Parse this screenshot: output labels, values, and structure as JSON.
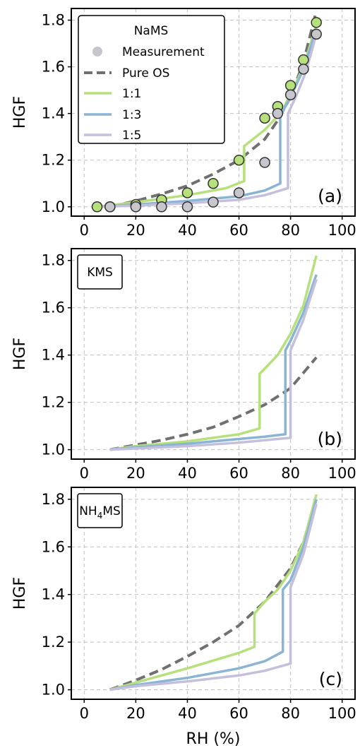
{
  "colors": {
    "ratio_1_1": "#b5e07b",
    "ratio_1_3": "#8ab4d4",
    "ratio_1_5": "#c4bfdc",
    "pure_os": "#707070",
    "measurement_gray": "#c6c6cc",
    "frame": "#000000",
    "grid": "#c0c0c0"
  },
  "chart_data": [
    {
      "type": "line",
      "panel_label": "(a)",
      "species_label": "NaMS",
      "xlabel": "",
      "ylabel": "HGF",
      "xlim": [
        -5,
        105
      ],
      "ylim": [
        0.96,
        1.85
      ],
      "xticks": [
        0,
        20,
        40,
        60,
        80,
        100
      ],
      "yticks": [
        1.0,
        1.2,
        1.4,
        1.6,
        1.8
      ],
      "grid": true,
      "legend": {
        "title": "NaMS",
        "position": "top-left",
        "entries": [
          "Measurement",
          "Pure OS",
          "1:1",
          "1:3",
          "1:5"
        ]
      },
      "series": [
        {
          "name": "Pure OS",
          "style": "dashed",
          "color_key": "pure_os",
          "x": [
            10,
            20,
            30,
            40,
            50,
            60,
            70,
            75,
            80,
            85,
            90
          ],
          "y": [
            1.0,
            1.025,
            1.055,
            1.09,
            1.14,
            1.2,
            1.29,
            1.37,
            1.47,
            1.62,
            1.84
          ]
        },
        {
          "name": "1:1",
          "style": "solid",
          "color_key": "ratio_1_1",
          "x": [
            5,
            20,
            40,
            55,
            62,
            62,
            70,
            76,
            80,
            85,
            90
          ],
          "y": [
            1.0,
            1.02,
            1.05,
            1.08,
            1.11,
            1.26,
            1.33,
            1.4,
            1.48,
            1.6,
            1.78
          ]
        },
        {
          "name": "1:3",
          "style": "solid",
          "color_key": "ratio_1_3",
          "x": [
            5,
            20,
            40,
            60,
            70,
            76,
            76,
            80,
            85,
            90
          ],
          "y": [
            1.0,
            1.01,
            1.025,
            1.045,
            1.07,
            1.1,
            1.39,
            1.47,
            1.59,
            1.76
          ]
        },
        {
          "name": "1:5",
          "style": "solid",
          "color_key": "ratio_1_5",
          "x": [
            5,
            20,
            40,
            60,
            70,
            79,
            79,
            82,
            86,
            90
          ],
          "y": [
            1.0,
            1.005,
            1.015,
            1.03,
            1.05,
            1.08,
            1.4,
            1.47,
            1.58,
            1.74
          ]
        }
      ],
      "measurements": [
        {
          "color_key": "ratio_1_1",
          "x": [
            5,
            10,
            20,
            30,
            40,
            50,
            60,
            70,
            75,
            80,
            85,
            90
          ],
          "y": [
            1.0,
            1.0,
            1.01,
            1.03,
            1.06,
            1.1,
            1.2,
            1.38,
            1.43,
            1.52,
            1.63,
            1.79
          ]
        },
        {
          "color_key": "measurement_gray",
          "x": [
            10,
            20,
            30,
            40,
            50,
            60,
            70,
            75,
            80,
            85,
            90
          ],
          "y": [
            1.0,
            1.0,
            1.0,
            1.0,
            1.02,
            1.06,
            1.19,
            1.4,
            1.48,
            1.59,
            1.74
          ]
        }
      ]
    },
    {
      "type": "line",
      "panel_label": "(b)",
      "species_label": "KMS",
      "xlabel": "",
      "ylabel": "HGF",
      "xlim": [
        -5,
        105
      ],
      "ylim": [
        0.96,
        1.85
      ],
      "xticks": [
        0,
        20,
        40,
        60,
        80,
        100
      ],
      "yticks": [
        1.0,
        1.2,
        1.4,
        1.6,
        1.8
      ],
      "grid": true,
      "series": [
        {
          "name": "Pure OS",
          "style": "dashed",
          "color_key": "pure_os",
          "x": [
            10,
            20,
            30,
            40,
            50,
            60,
            70,
            80,
            90
          ],
          "y": [
            1.0,
            1.02,
            1.04,
            1.065,
            1.095,
            1.14,
            1.19,
            1.26,
            1.39
          ]
        },
        {
          "name": "1:1",
          "style": "solid",
          "color_key": "ratio_1_1",
          "x": [
            10,
            20,
            40,
            60,
            68,
            68,
            75,
            80,
            85,
            90
          ],
          "y": [
            1.0,
            1.015,
            1.035,
            1.065,
            1.09,
            1.32,
            1.4,
            1.49,
            1.61,
            1.82
          ]
        },
        {
          "name": "1:3",
          "style": "solid",
          "color_key": "ratio_1_3",
          "x": [
            10,
            20,
            40,
            60,
            70,
            78,
            78,
            80,
            85,
            90
          ],
          "y": [
            1.0,
            1.01,
            1.025,
            1.045,
            1.055,
            1.065,
            1.42,
            1.46,
            1.58,
            1.74
          ]
        },
        {
          "name": "1:5",
          "style": "solid",
          "color_key": "ratio_1_5",
          "x": [
            10,
            20,
            40,
            60,
            70,
            80,
            80,
            85,
            90
          ],
          "y": [
            1.0,
            1.005,
            1.015,
            1.03,
            1.04,
            1.05,
            1.42,
            1.55,
            1.72
          ]
        }
      ],
      "measurements": []
    },
    {
      "type": "line",
      "panel_label": "(c)",
      "species_label": "NH4MS",
      "species_main": "NH",
      "species_sub": "4",
      "species_rest": "MS",
      "xlabel": "RH (%)",
      "ylabel": "HGF",
      "xlim": [
        -5,
        105
      ],
      "ylim": [
        0.96,
        1.85
      ],
      "xticks": [
        0,
        20,
        40,
        60,
        80,
        100
      ],
      "yticks": [
        1.0,
        1.2,
        1.4,
        1.6,
        1.8
      ],
      "grid": true,
      "series": [
        {
          "name": "Pure OS",
          "style": "dashed",
          "color_key": "pure_os",
          "x": [
            10,
            20,
            30,
            40,
            50,
            60,
            70,
            80,
            85,
            90
          ],
          "y": [
            1.0,
            1.04,
            1.085,
            1.14,
            1.2,
            1.27,
            1.37,
            1.51,
            1.62,
            1.8
          ]
        },
        {
          "name": "1:1",
          "style": "solid",
          "color_key": "ratio_1_1",
          "x": [
            10,
            20,
            40,
            60,
            66,
            66,
            70,
            75,
            80,
            85,
            90
          ],
          "y": [
            1.0,
            1.03,
            1.09,
            1.155,
            1.18,
            1.32,
            1.37,
            1.42,
            1.5,
            1.62,
            1.82
          ]
        },
        {
          "name": "1:3",
          "style": "solid",
          "color_key": "ratio_1_3",
          "x": [
            10,
            20,
            40,
            60,
            70,
            77,
            77,
            80,
            85,
            90
          ],
          "y": [
            1.0,
            1.02,
            1.05,
            1.09,
            1.12,
            1.16,
            1.42,
            1.46,
            1.6,
            1.8
          ]
        },
        {
          "name": "1:5",
          "style": "solid",
          "color_key": "ratio_1_5",
          "x": [
            10,
            20,
            40,
            60,
            70,
            80,
            80,
            85,
            90
          ],
          "y": [
            1.0,
            1.015,
            1.035,
            1.06,
            1.08,
            1.11,
            1.43,
            1.57,
            1.78
          ]
        }
      ],
      "measurements": []
    }
  ]
}
